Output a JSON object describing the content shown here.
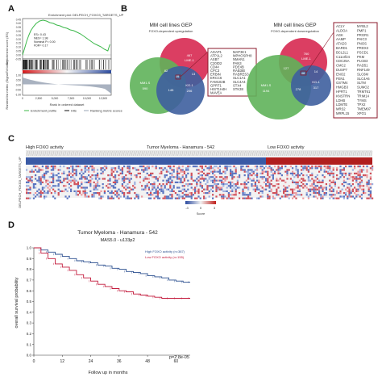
{
  "panels": {
    "A": {
      "letter": "A",
      "plot_title": "Enrichment plot: DELPECH_FOXO3_TARGETS_UP",
      "stats": [
        "ES= 0.43",
        "NES= 1.98",
        "Nominal P= 0.00",
        "FDR= 0.17"
      ],
      "ylabel_top": "Enrichment score (ES)",
      "ylabel_bottom": "Ranked list metric (SignalToNoise)",
      "yticks_top": [
        "0.45",
        "0.40",
        "0.35",
        "0.30",
        "0.25",
        "0.20",
        "0.15",
        "0.10",
        "0.05",
        "0.00",
        "-0.05"
      ],
      "yticks_bottom": [
        "1.00",
        "0.50",
        "0.00",
        "-0.50",
        "-1.00"
      ],
      "xticks": [
        "0",
        "2,500",
        "5,000",
        "7,500",
        "10,000",
        "12,500"
      ],
      "xlabel": "Rank in ordered dataset",
      "legend": [
        "Enrichment profile",
        "Hits",
        "Ranking metric scores"
      ],
      "colors": {
        "profile": "#3cb84a",
        "hits": "#111111"
      }
    },
    "B": {
      "letter": "B",
      "left": {
        "title": "MM cell lines GEP",
        "subtitle": "FOXO-dependent upregulation",
        "circle_labels": {
          "red": [
            "467",
            "LME-1"
          ],
          "green": [
            "MM1.S",
            "590"
          ],
          "blue": [
            "KG-1",
            "206"
          ]
        },
        "overlaps": {
          "rg": "82",
          "rb": "13",
          "center": "49",
          "gb": "145"
        },
        "genes_col1": [
          "AGAP1",
          "ATP1L2",
          "ASB7",
          "C20ID2",
          "CD44",
          "CPC3",
          "ERBIN",
          "ERCC6",
          "FAM102B",
          "GPRT1",
          "HIST1H4H",
          "MAVEA"
        ],
        "genes_col2": [
          "MAP3K1",
          "MPHOSPH8",
          "NMAN1",
          "PAN3",
          "PDE4B",
          "RAB3IB",
          "RABRES3",
          "SLC1A1",
          "SLC4A4",
          "STX4",
          "STK38"
        ]
      },
      "right": {
        "title": "MM cell lines GEP",
        "subtitle": "FOXO-dependent downregulation",
        "circle_labels": {
          "red": [
            "760",
            "LME-1"
          ],
          "green": [
            "MM1.S",
            "1194"
          ],
          "blue": [
            "KG-1",
            "317"
          ]
        },
        "overlaps": {
          "rg": "127",
          "rb": "14",
          "center": "48",
          "gb": "278"
        },
        "genes_col1": [
          "ACLY",
          "ALDOA",
          "AGK",
          "AAMP",
          "ATAD3",
          "BARD1",
          "BCL2L1",
          "C11orf24",
          "CDC25A",
          "CMC2",
          "DUSP7",
          "ENO2",
          "FEN1",
          "GSTM4",
          "HMGB3",
          "HPRT1",
          "KNSTRN",
          "LDHB",
          "LDMTE",
          "MRS2",
          "MRPL15"
        ],
        "genes_col2": [
          "MYBL2",
          "PMP1",
          "PRGR1",
          "PAIC3",
          "PNOS",
          "PRDX3",
          "PSCD1",
          "PKM",
          "PLCB3",
          "RAD51",
          "RNF149",
          "SLC6M",
          "SLC4A6",
          "SLTM",
          "SUMO2",
          "TRMT61",
          "TRIM14",
          "TYMS",
          "TPX2",
          "TMEM97",
          "XPO1"
        ]
      }
    },
    "C": {
      "letter": "C",
      "header_left": "High FOXO activity",
      "header_mid": "Tumor Myeloma - Hanamura - 542",
      "header_right": "Low FOXO activity",
      "side_label": "DELPECH_FOXO3_TARGETS_UP",
      "scale_label": "Score",
      "scale_ticks": [
        "-3",
        "0",
        "3"
      ],
      "colors": {
        "high": "#3a5aa5",
        "low": "#b01e1e",
        "mid": "#f2f2f2"
      }
    },
    "D": {
      "letter": "D",
      "title": "Tumor Myeloma - Hanamura - 542",
      "subtitle": "MAS5.0 - u133p2",
      "ylabel": "overall survival probability",
      "xlabel": "Follow up in months",
      "legend_high": "High FOXO activity (n=387)",
      "legend_low": "Low FOXO activity (n=155)",
      "pvalue": "p=2.8e-05",
      "colors": {
        "high": "#2b4f8f",
        "low": "#c2183a"
      }
    }
  },
  "chart_data": [
    {
      "type": "line",
      "title": "Enrichment plot: DELPECH_FOXO3_TARGETS_UP",
      "xlabel": "Rank in ordered dataset",
      "ylabel": "Enrichment score (ES)",
      "xlim": [
        0,
        13000
      ],
      "ylim": [
        -0.05,
        0.45
      ],
      "series": [
        {
          "name": "Enrichment profile",
          "x": [
            0,
            300,
            600,
            900,
            1200,
            1600,
            2000,
            2500,
            3000,
            3500,
            4000,
            4500,
            5000,
            5500,
            6000,
            6500,
            7000,
            7500,
            8000,
            8500,
            9000,
            9500,
            10000,
            10500,
            11000,
            11500,
            12000,
            12500,
            12800
          ],
          "y": [
            0,
            0.08,
            0.17,
            0.24,
            0.3,
            0.35,
            0.39,
            0.42,
            0.43,
            0.42,
            0.4,
            0.39,
            0.37,
            0.36,
            0.34,
            0.33,
            0.31,
            0.3,
            0.28,
            0.26,
            0.23,
            0.2,
            0.17,
            0.14,
            0.12,
            0.1,
            0.07,
            0.05,
            0.13
          ]
        }
      ]
    },
    {
      "type": "line",
      "title": "Tumor Myeloma - Hanamura - 542",
      "xlabel": "Follow up in months",
      "ylabel": "overall survival probability",
      "xlim": [
        0,
        66
      ],
      "ylim": [
        0,
        1
      ],
      "xticks": [
        0,
        12,
        24,
        36,
        48,
        60
      ],
      "yticks": [
        0,
        0.1,
        0.2,
        0.3,
        0.4,
        0.5,
        0.6,
        0.7,
        0.8,
        0.9,
        1.0
      ],
      "series": [
        {
          "name": "High FOXO activity (n=387)",
          "x": [
            0,
            3,
            6,
            9,
            12,
            15,
            18,
            21,
            24,
            27,
            30,
            33,
            36,
            39,
            42,
            45,
            48,
            51,
            54,
            57,
            60,
            63,
            66
          ],
          "y": [
            1.0,
            0.98,
            0.96,
            0.94,
            0.92,
            0.9,
            0.88,
            0.87,
            0.86,
            0.84,
            0.83,
            0.81,
            0.8,
            0.78,
            0.77,
            0.76,
            0.74,
            0.73,
            0.72,
            0.7,
            0.69,
            0.68,
            0.68
          ]
        },
        {
          "name": "Low FOXO activity (n=155)",
          "x": [
            0,
            3,
            6,
            9,
            12,
            15,
            18,
            21,
            24,
            27,
            30,
            33,
            36,
            39,
            42,
            45,
            48,
            51,
            54,
            57,
            60,
            63,
            66
          ],
          "y": [
            1.0,
            0.95,
            0.9,
            0.85,
            0.82,
            0.79,
            0.75,
            0.72,
            0.69,
            0.66,
            0.64,
            0.62,
            0.6,
            0.59,
            0.57,
            0.56,
            0.55,
            0.54,
            0.53,
            0.53,
            0.53,
            0.53,
            0.53
          ]
        }
      ],
      "annotations": [
        "p=2.8e-05"
      ]
    }
  ]
}
